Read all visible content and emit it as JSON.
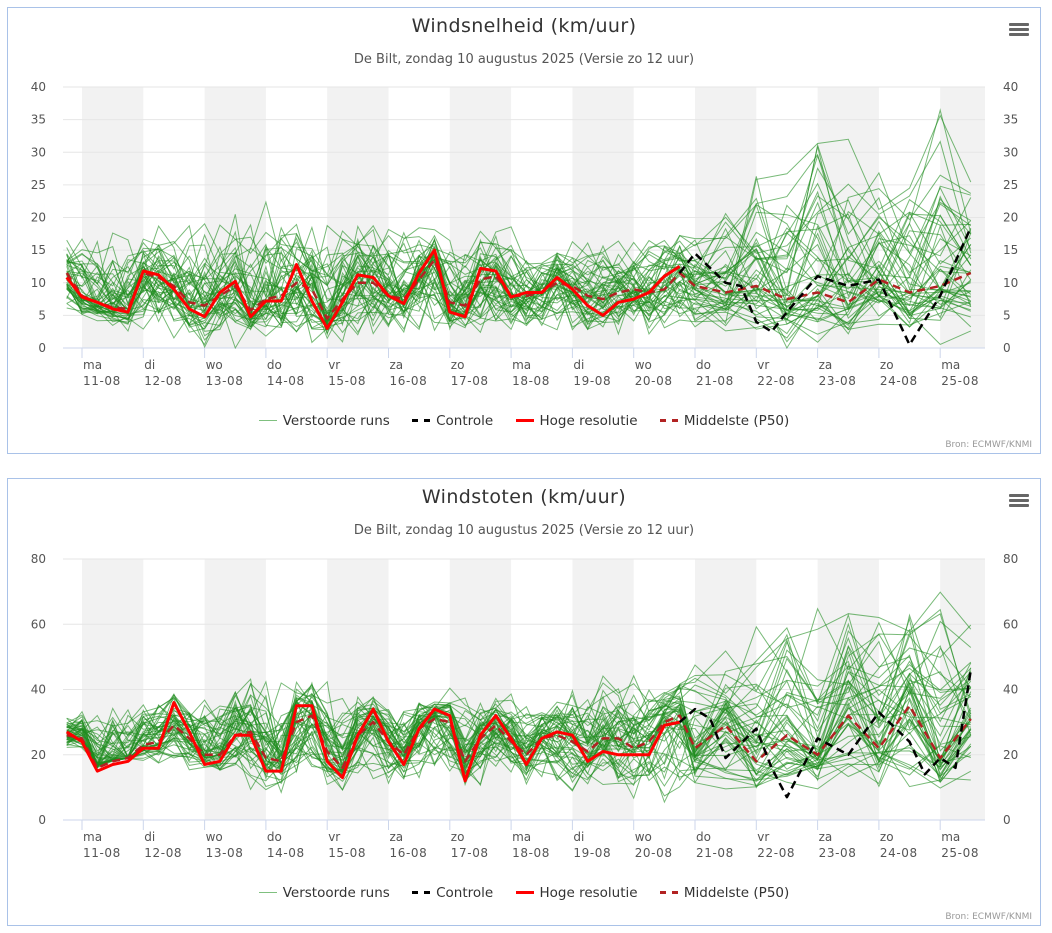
{
  "common": {
    "subtitle": "De Bilt, zondag 10 augustus 2025 (Versie zo 12 uur)",
    "source": "Bron: ECMWF/KNMI",
    "menu_icon": "hamburger-icon",
    "legend": [
      {
        "label": "Verstoorde runs",
        "color": "#7fc07f"
      },
      {
        "label": "Controle",
        "color": "#000000"
      },
      {
        "label": "Hoge resolutie",
        "color": "#ff0000"
      },
      {
        "label": "Middelste (P50)",
        "color": "#b22222"
      }
    ],
    "colors": {
      "ensemble": "#1e8c1e",
      "control": "#000000",
      "hres": "#ff0000",
      "p50": "#b22222",
      "band": "#f2f2f2",
      "grid": "#e6e6e6",
      "axis": "#ccd6eb"
    }
  },
  "chart_data": [
    {
      "type": "line",
      "title": "Windsnelheid (km/uur)",
      "ylim": [
        0,
        40
      ],
      "yticks": [
        0,
        5,
        10,
        15,
        20,
        25,
        30,
        35,
        40
      ],
      "x_unit": "days since ma 11-08 00:00",
      "xlim": [
        -0.25,
        14.6
      ],
      "x_ticks": [
        {
          "x": 0,
          "day": "ma",
          "date": "11-08"
        },
        {
          "x": 1,
          "day": "di",
          "date": "12-08"
        },
        {
          "x": 2,
          "day": "wo",
          "date": "13-08"
        },
        {
          "x": 3,
          "day": "do",
          "date": "14-08"
        },
        {
          "x": 4,
          "day": "vr",
          "date": "15-08"
        },
        {
          "x": 5,
          "day": "za",
          "date": "16-08"
        },
        {
          "x": 6,
          "day": "zo",
          "date": "17-08"
        },
        {
          "x": 7,
          "day": "ma",
          "date": "18-08"
        },
        {
          "x": 8,
          "day": "di",
          "date": "19-08"
        },
        {
          "x": 9,
          "day": "wo",
          "date": "20-08"
        },
        {
          "x": 10,
          "day": "do",
          "date": "21-08"
        },
        {
          "x": 11,
          "day": "vr",
          "date": "22-08"
        },
        {
          "x": 12,
          "day": "za",
          "date": "23-08"
        },
        {
          "x": 13,
          "day": "zo",
          "date": "24-08"
        },
        {
          "x": 14,
          "day": "ma",
          "date": "25-08"
        }
      ],
      "series": [
        {
          "name": "Hoge resolutie",
          "x": [
            -0.25,
            0,
            0.25,
            0.5,
            0.75,
            1,
            1.25,
            1.5,
            1.75,
            2,
            2.25,
            2.5,
            2.75,
            3,
            3.25,
            3.5,
            3.75,
            4,
            4.25,
            4.5,
            4.75,
            5,
            5.25,
            5.5,
            5.75,
            6,
            6.25,
            6.5,
            6.75,
            7,
            7.25,
            7.5,
            7.75,
            8,
            8.25,
            8.5,
            8.75,
            9,
            9.25,
            9.5,
            9.75
          ],
          "y": [
            10.8,
            7.8,
            7.0,
            6.0,
            5.5,
            11.8,
            11.2,
            9.0,
            6.0,
            4.8,
            8.5,
            10.2,
            4.8,
            7.2,
            7.2,
            12.8,
            7.2,
            3.0,
            7.0,
            11.2,
            10.8,
            8.0,
            6.8,
            11.5,
            15.0,
            5.5,
            4.8,
            12.2,
            11.8,
            7.8,
            8.5,
            8.5,
            10.8,
            9.0,
            6.5,
            5.0,
            7.0,
            7.5,
            8.5,
            11.0,
            12.5
          ]
        },
        {
          "name": "Middelste (P50)",
          "x": [
            -0.25,
            0,
            0.25,
            0.5,
            0.75,
            1,
            1.25,
            1.5,
            1.75,
            2,
            2.25,
            2.5,
            2.75,
            3,
            3.25,
            3.5,
            3.75,
            4,
            4.25,
            4.5,
            4.75,
            5,
            5.25,
            5.5,
            5.75,
            6,
            6.25,
            6.5,
            6.75,
            7,
            7.25,
            7.5,
            7.75,
            8,
            8.25,
            8.5,
            8.75,
            9,
            9.25,
            9.5,
            9.75,
            10,
            10.5,
            11,
            11.5,
            12,
            12.5,
            13,
            13.5,
            14,
            14.5
          ],
          "y": [
            11.5,
            8.0,
            7.0,
            6.2,
            6.0,
            11.5,
            10.8,
            9.5,
            7.0,
            6.5,
            8.0,
            9.5,
            5.8,
            7.5,
            8.0,
            10.0,
            9.0,
            4.5,
            7.5,
            10.0,
            10.0,
            8.0,
            7.5,
            10.5,
            13.5,
            7.0,
            6.5,
            10.5,
            11.0,
            8.0,
            8.0,
            8.5,
            10.0,
            9.5,
            8.0,
            7.5,
            8.5,
            9.0,
            8.5,
            9.0,
            11.5,
            9.5,
            8.5,
            9.5,
            7.5,
            8.5,
            7.0,
            10.5,
            8.5,
            9.5,
            11.5
          ]
        },
        {
          "name": "Controle",
          "x": [
            9.75,
            10,
            10.5,
            10.75,
            11,
            11.25,
            11.5,
            12,
            12.5,
            13,
            13.5,
            14,
            14.5
          ],
          "y": [
            11.5,
            14.5,
            10.0,
            9.5,
            4.0,
            2.5,
            5.5,
            11.0,
            9.5,
            10.5,
            0.5,
            8.0,
            18.5
          ]
        }
      ],
      "ensemble": {
        "name": "Verstoorde runs",
        "members": 50,
        "spread_x": [
          -0.25,
          1,
          2,
          3,
          4,
          5,
          6,
          7,
          8,
          9,
          10,
          11,
          12,
          13,
          14,
          14.5
        ],
        "spread_low": [
          5,
          2,
          1,
          1,
          1,
          2,
          2,
          2,
          2,
          2,
          1,
          1,
          0.5,
          0.5,
          0.5,
          1
        ],
        "spread_high": [
          18,
          20,
          21,
          23,
          21,
          20,
          20,
          18,
          17,
          18,
          20,
          30,
          36.5,
          28,
          36.5,
          28
        ]
      }
    },
    {
      "type": "line",
      "title": "Windstoten (km/uur)",
      "ylim": [
        0,
        80
      ],
      "yticks": [
        0,
        20,
        40,
        60,
        80
      ],
      "x_unit": "days since ma 11-08 00:00",
      "xlim": [
        -0.25,
        14.6
      ],
      "x_ticks": [
        {
          "x": 0,
          "day": "ma",
          "date": "11-08"
        },
        {
          "x": 1,
          "day": "di",
          "date": "12-08"
        },
        {
          "x": 2,
          "day": "wo",
          "date": "13-08"
        },
        {
          "x": 3,
          "day": "do",
          "date": "14-08"
        },
        {
          "x": 4,
          "day": "vr",
          "date": "15-08"
        },
        {
          "x": 5,
          "day": "za",
          "date": "16-08"
        },
        {
          "x": 6,
          "day": "zo",
          "date": "17-08"
        },
        {
          "x": 7,
          "day": "ma",
          "date": "18-08"
        },
        {
          "x": 8,
          "day": "di",
          "date": "19-08"
        },
        {
          "x": 9,
          "day": "wo",
          "date": "20-08"
        },
        {
          "x": 10,
          "day": "do",
          "date": "21-08"
        },
        {
          "x": 11,
          "day": "vr",
          "date": "22-08"
        },
        {
          "x": 12,
          "day": "za",
          "date": "23-08"
        },
        {
          "x": 13,
          "day": "zo",
          "date": "24-08"
        },
        {
          "x": 14,
          "day": "ma",
          "date": "25-08"
        }
      ],
      "series": [
        {
          "name": "Hoge resolutie",
          "x": [
            -0.25,
            0,
            0.25,
            0.5,
            0.75,
            1,
            1.25,
            1.5,
            1.75,
            2,
            2.25,
            2.5,
            2.75,
            3,
            3.25,
            3.5,
            3.75,
            4,
            4.25,
            4.5,
            4.75,
            5,
            5.25,
            5.5,
            5.75,
            6,
            6.25,
            6.5,
            6.75,
            7,
            7.25,
            7.5,
            7.75,
            8,
            8.25,
            8.5,
            8.75,
            9,
            9.25,
            9.5,
            9.75
          ],
          "y": [
            27,
            24,
            15,
            17,
            18,
            22,
            22,
            36,
            27,
            17,
            18,
            26,
            26,
            15,
            15,
            35,
            35,
            18,
            13,
            26,
            34,
            24,
            17,
            28,
            34,
            32,
            12,
            26,
            32,
            25,
            17,
            25,
            27,
            26,
            18,
            21,
            20,
            20,
            20,
            29,
            30
          ]
        },
        {
          "name": "Middelste (P50)",
          "x": [
            -0.25,
            0,
            0.25,
            0.5,
            0.75,
            1,
            1.25,
            1.5,
            1.75,
            2,
            2.25,
            2.5,
            2.75,
            3,
            3.25,
            3.5,
            3.75,
            4,
            4.25,
            4.5,
            4.75,
            5,
            5.25,
            5.5,
            5.75,
            6,
            6.25,
            6.5,
            6.75,
            7,
            7.25,
            7.5,
            7.75,
            8,
            8.25,
            8.5,
            8.75,
            9,
            9.25,
            9.5,
            9.75,
            10,
            10.5,
            11,
            11.5,
            12,
            12.5,
            13,
            13.5,
            14,
            14.5
          ],
          "y": [
            26,
            25,
            16,
            18,
            19,
            23,
            24,
            29,
            25,
            20,
            20,
            26,
            27,
            19,
            18,
            30,
            32,
            21,
            16,
            26,
            30,
            24,
            20,
            28,
            31,
            30,
            18,
            25,
            29,
            24,
            20,
            25,
            26,
            24,
            21,
            25,
            25,
            22,
            24,
            30,
            32,
            22,
            29,
            18,
            26,
            20,
            32,
            22,
            35,
            19,
            31
          ]
        },
        {
          "name": "Controle",
          "x": [
            9.75,
            10,
            10.25,
            10.5,
            11,
            11.25,
            11.5,
            12,
            12.5,
            13,
            13.5,
            13.75,
            14,
            14.25,
            14.5
          ],
          "y": [
            30,
            34,
            31,
            19,
            28,
            16,
            7,
            25,
            20,
            33,
            24,
            14,
            19,
            16,
            46
          ]
        }
      ],
      "ensemble": {
        "name": "Verstoorde runs",
        "members": 50,
        "spread_x": [
          -0.25,
          1,
          2,
          3,
          4,
          5,
          6,
          7,
          8,
          9,
          10,
          11,
          12,
          13,
          14,
          14.5
        ],
        "spread_low": [
          22,
          18,
          14,
          8,
          10,
          10,
          9,
          12,
          8,
          6,
          8,
          6,
          8,
          10,
          8,
          12
        ],
        "spread_high": [
          34,
          40,
          42,
          48,
          45,
          38,
          41,
          38,
          42,
          44,
          47,
          61,
          65,
          70,
          74,
          65
        ]
      }
    }
  ]
}
